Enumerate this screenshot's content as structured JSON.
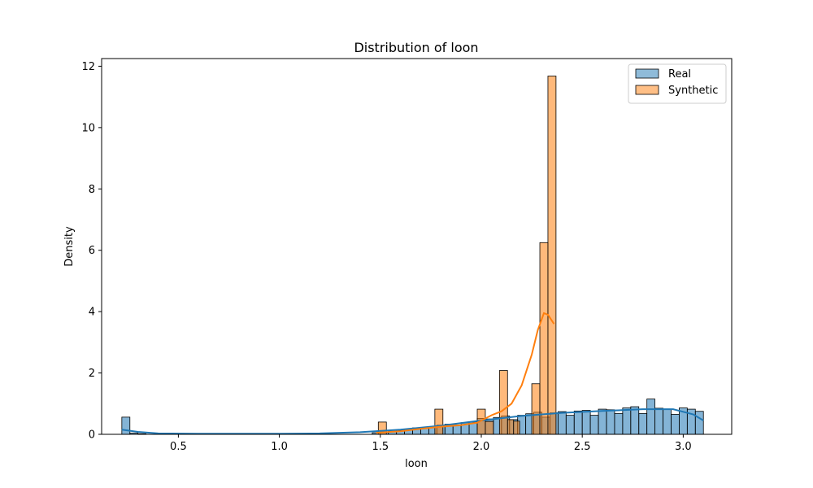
{
  "chart_data": {
    "type": "histogram",
    "title": "Distribution of loon",
    "xlabel": "loon",
    "ylabel": "Density",
    "xlim": [
      0.12,
      3.24
    ],
    "ylim": [
      0,
      12.25
    ],
    "xticks": [
      "0.5",
      "1.0",
      "1.5",
      "2.0",
      "2.5",
      "3.0"
    ],
    "yticks": [
      "0",
      "2",
      "4",
      "6",
      "8",
      "10",
      "12"
    ],
    "grid": false,
    "legend_position": "top-right",
    "series": [
      {
        "name": "Real",
        "color": "#1f77b4",
        "bins": [
          [
            0.22,
            0.26,
            0.56
          ],
          [
            0.26,
            0.3,
            0.04
          ],
          [
            0.3,
            0.34,
            0.02
          ],
          [
            1.46,
            1.5,
            0.05
          ],
          [
            1.5,
            1.54,
            0.08
          ],
          [
            1.54,
            1.58,
            0.1
          ],
          [
            1.58,
            1.62,
            0.13
          ],
          [
            1.62,
            1.66,
            0.17
          ],
          [
            1.66,
            1.7,
            0.21
          ],
          [
            1.7,
            1.74,
            0.22
          ],
          [
            1.74,
            1.78,
            0.25
          ],
          [
            1.78,
            1.82,
            0.3
          ],
          [
            1.82,
            1.86,
            0.33
          ],
          [
            1.86,
            1.9,
            0.3
          ],
          [
            1.9,
            1.94,
            0.38
          ],
          [
            1.94,
            1.98,
            0.4
          ],
          [
            1.98,
            2.02,
            0.52
          ],
          [
            2.02,
            2.06,
            0.5
          ],
          [
            2.06,
            2.1,
            0.55
          ],
          [
            2.1,
            2.14,
            0.6
          ],
          [
            2.14,
            2.18,
            0.48
          ],
          [
            2.18,
            2.22,
            0.62
          ],
          [
            2.22,
            2.26,
            0.67
          ],
          [
            2.26,
            2.3,
            0.72
          ],
          [
            2.3,
            2.34,
            0.56
          ],
          [
            2.34,
            2.38,
            0.7
          ],
          [
            2.38,
            2.42,
            0.74
          ],
          [
            2.42,
            2.46,
            0.62
          ],
          [
            2.46,
            2.5,
            0.76
          ],
          [
            2.5,
            2.54,
            0.78
          ],
          [
            2.54,
            2.58,
            0.62
          ],
          [
            2.58,
            2.62,
            0.82
          ],
          [
            2.62,
            2.66,
            0.8
          ],
          [
            2.66,
            2.7,
            0.68
          ],
          [
            2.7,
            2.74,
            0.86
          ],
          [
            2.74,
            2.78,
            0.9
          ],
          [
            2.78,
            2.82,
            0.68
          ],
          [
            2.82,
            2.86,
            1.15
          ],
          [
            2.86,
            2.9,
            0.85
          ],
          [
            2.9,
            2.94,
            0.82
          ],
          [
            2.94,
            2.98,
            0.65
          ],
          [
            2.98,
            3.02,
            0.86
          ],
          [
            3.02,
            3.06,
            0.82
          ],
          [
            3.06,
            3.1,
            0.75
          ]
        ],
        "kde": [
          [
            0.22,
            0.15
          ],
          [
            0.3,
            0.08
          ],
          [
            0.4,
            0.03
          ],
          [
            0.6,
            0.02
          ],
          [
            0.8,
            0.02
          ],
          [
            1.0,
            0.02
          ],
          [
            1.2,
            0.03
          ],
          [
            1.4,
            0.07
          ],
          [
            1.6,
            0.15
          ],
          [
            1.8,
            0.28
          ],
          [
            2.0,
            0.45
          ],
          [
            2.2,
            0.6
          ],
          [
            2.4,
            0.7
          ],
          [
            2.6,
            0.76
          ],
          [
            2.8,
            0.82
          ],
          [
            2.95,
            0.82
          ],
          [
            3.05,
            0.65
          ],
          [
            3.1,
            0.45
          ]
        ]
      },
      {
        "name": "Synthetic",
        "color": "#ff7f0e",
        "bins": [
          [
            1.49,
            1.53,
            0.4
          ],
          [
            1.77,
            1.81,
            0.82
          ],
          [
            1.98,
            2.02,
            0.82
          ],
          [
            2.02,
            2.06,
            0.42
          ],
          [
            2.09,
            2.13,
            2.08
          ],
          [
            2.13,
            2.16,
            0.48
          ],
          [
            2.16,
            2.19,
            0.43
          ],
          [
            2.25,
            2.29,
            1.65
          ],
          [
            2.29,
            2.33,
            6.25
          ],
          [
            2.33,
            2.37,
            11.68
          ]
        ],
        "kde": [
          [
            1.48,
            0.05
          ],
          [
            1.6,
            0.1
          ],
          [
            1.7,
            0.18
          ],
          [
            1.8,
            0.25
          ],
          [
            1.9,
            0.3
          ],
          [
            1.98,
            0.38
          ],
          [
            2.05,
            0.62
          ],
          [
            2.1,
            0.75
          ],
          [
            2.15,
            1.0
          ],
          [
            2.2,
            1.6
          ],
          [
            2.25,
            2.6
          ],
          [
            2.28,
            3.4
          ],
          [
            2.31,
            3.95
          ],
          [
            2.33,
            3.9
          ],
          [
            2.36,
            3.6
          ]
        ]
      }
    ]
  }
}
